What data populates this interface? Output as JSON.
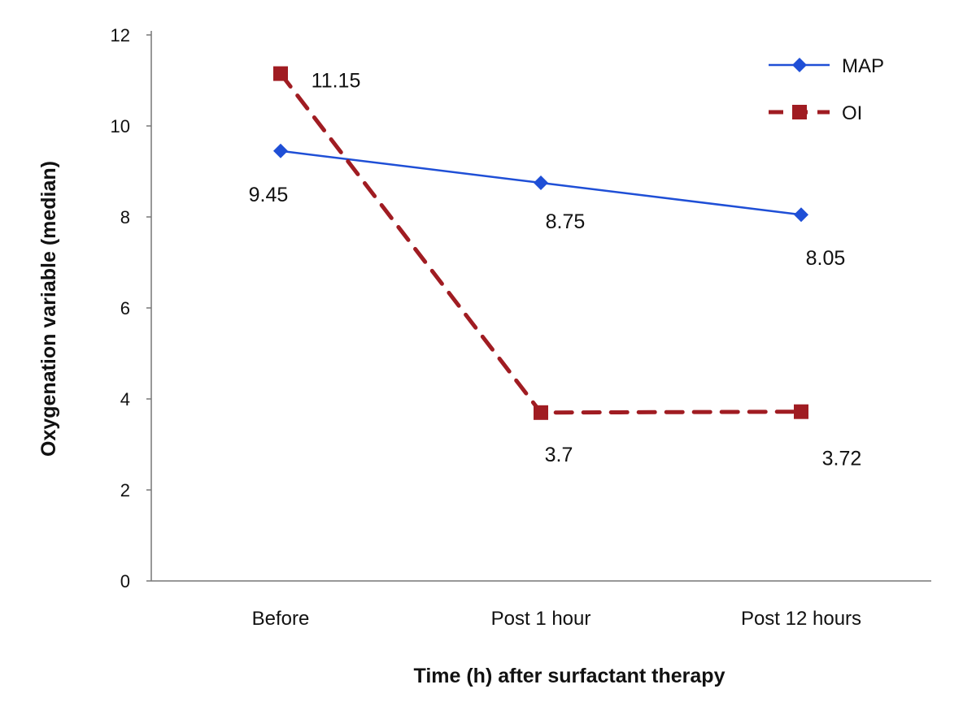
{
  "chart_data": {
    "type": "line",
    "categories": [
      "Before",
      "Post 1 hour",
      "Post 12 hours"
    ],
    "xlabel": "Time (h) after surfactant therapy",
    "ylabel": "Oxygenation variable (median)",
    "ylim": [
      0,
      12
    ],
    "yticks": [
      0,
      2,
      4,
      6,
      8,
      10,
      12
    ],
    "grid": false,
    "legend": "top-right",
    "series": [
      {
        "name": "MAP",
        "values": [
          9.45,
          8.75,
          8.05
        ],
        "labels": [
          "9.45",
          "8.75",
          "8.05"
        ],
        "color": "#1f4fd6",
        "marker": "diamond",
        "dash": "solid"
      },
      {
        "name": "OI",
        "values": [
          11.15,
          3.7,
          3.72
        ],
        "labels": [
          "11.15",
          "3.7",
          "3.72"
        ],
        "color": "#a01c22",
        "marker": "square",
        "dash": "dashed"
      }
    ]
  }
}
